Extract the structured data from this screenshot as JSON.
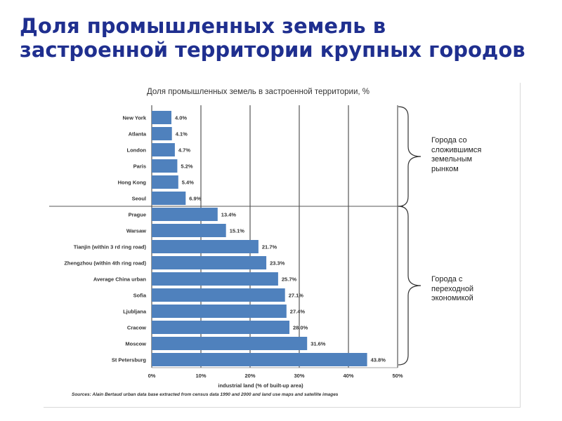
{
  "slide": {
    "title_line1": "Доля промышленных земель в",
    "title_line2": "застроенной территории крупных городов"
  },
  "groups": {
    "established": "Города со сложившимся земельным рынком",
    "transitional": "Города с переходной экономикой"
  },
  "colors": {
    "bar": "#4f81bd",
    "title": "#1f2f8f",
    "grid": "#000000",
    "divider": "#555555"
  },
  "chart_data": {
    "type": "bar",
    "orientation": "horizontal",
    "title": "Доля промышленных земель в застроенной территории, %",
    "xlabel": "industrial land (% of built-up area)",
    "ylabel": "",
    "xlim": [
      0,
      50
    ],
    "xticks": [
      "0%",
      "10%",
      "20%",
      "30%",
      "40%",
      "50%"
    ],
    "grid": true,
    "categories": [
      "New York",
      "Atlanta",
      "London",
      "Paris",
      "Hong Kong",
      "Seoul",
      "Prague",
      "Warsaw",
      "Tianjin (within 3 rd ring road)",
      "Zhengzhou (within 4th ring road)",
      "Average China urban",
      "Sofia",
      "Ljubljana",
      "Cracow",
      "Moscow",
      "St Petersburg"
    ],
    "values": [
      4.0,
      4.1,
      4.7,
      5.2,
      5.4,
      6.9,
      13.4,
      15.1,
      21.7,
      23.3,
      25.7,
      27.1,
      27.4,
      28.0,
      31.6,
      43.8
    ],
    "value_labels": [
      "4.0%",
      "4.1%",
      "4.7%",
      "5.2%",
      "5.4%",
      "6.9%",
      "13.4%",
      "15.1%",
      "21.7%",
      "23.3%",
      "25.7%",
      "27.1%",
      "27.4%",
      "28.0%",
      "31.6%",
      "43.8%"
    ],
    "source": "Sources: Alain Bertaud urban data base extracted from census data 1990 and 2000 and land use maps and satellite images"
  }
}
